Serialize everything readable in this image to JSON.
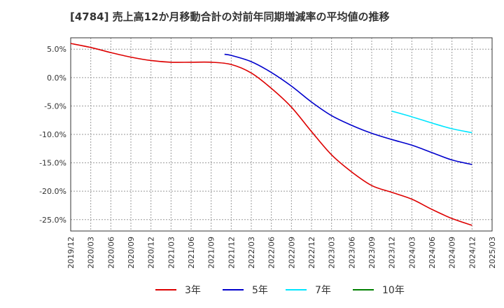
{
  "chart_data": {
    "type": "line",
    "title": "[4784]  売上高12か月移動合計の対前年同期増減率の平均値の推移",
    "xlabel": "",
    "ylabel": "",
    "x_ticks": [
      "2019/12",
      "2020/03",
      "2020/06",
      "2020/09",
      "2020/12",
      "2021/03",
      "2021/06",
      "2021/09",
      "2021/12",
      "2022/03",
      "2022/06",
      "2022/09",
      "2022/12",
      "2023/03",
      "2023/06",
      "2023/09",
      "2023/12",
      "2024/03",
      "2024/06",
      "2024/09",
      "2024/12",
      "2025/03"
    ],
    "y_ticks": [
      "5.0%",
      "0.0%",
      "-5.0%",
      "-10.0%",
      "-15.0%",
      "-20.0%",
      "-25.0%"
    ],
    "y_tick_values": [
      5,
      0,
      -5,
      -10,
      -15,
      -20,
      -25
    ],
    "ylim": [
      -27,
      7
    ],
    "grid": true,
    "legend_position": "bottom",
    "series": [
      {
        "name": "3年",
        "color": "#dd0000",
        "points": [
          [
            "2019/12",
            6.0
          ],
          [
            "2020/03",
            5.3
          ],
          [
            "2020/06",
            4.4
          ],
          [
            "2020/09",
            3.6
          ],
          [
            "2020/12",
            3.0
          ],
          [
            "2021/03",
            2.7
          ],
          [
            "2021/06",
            2.7
          ],
          [
            "2021/09",
            2.7
          ],
          [
            "2021/12",
            2.3
          ],
          [
            "2022/03",
            0.8
          ],
          [
            "2022/06",
            -1.9
          ],
          [
            "2022/09",
            -5.2
          ],
          [
            "2022/12",
            -9.5
          ],
          [
            "2023/03",
            -13.6
          ],
          [
            "2023/06",
            -16.6
          ],
          [
            "2023/09",
            -19.0
          ],
          [
            "2023/12",
            -20.2
          ],
          [
            "2024/03",
            -21.4
          ],
          [
            "2024/06",
            -23.2
          ],
          [
            "2024/09",
            -24.8
          ],
          [
            "2024/12",
            -26.0
          ]
        ]
      },
      {
        "name": "5年",
        "color": "#0000cc",
        "points": [
          [
            "2021/11",
            4.1
          ],
          [
            "2021/12",
            3.9
          ],
          [
            "2022/03",
            2.8
          ],
          [
            "2022/06",
            0.9
          ],
          [
            "2022/09",
            -1.5
          ],
          [
            "2022/12",
            -4.3
          ],
          [
            "2023/03",
            -6.7
          ],
          [
            "2023/06",
            -8.4
          ],
          [
            "2023/09",
            -9.8
          ],
          [
            "2023/12",
            -10.9
          ],
          [
            "2024/03",
            -11.9
          ],
          [
            "2024/06",
            -13.2
          ],
          [
            "2024/09",
            -14.5
          ],
          [
            "2024/12",
            -15.3
          ]
        ]
      },
      {
        "name": "7年",
        "color": "#00e5ff",
        "points": [
          [
            "2023/12",
            -5.9
          ],
          [
            "2024/03",
            -6.9
          ],
          [
            "2024/06",
            -8.0
          ],
          [
            "2024/09",
            -9.0
          ],
          [
            "2024/12",
            -9.7
          ]
        ]
      },
      {
        "name": "10年",
        "color": "#008000",
        "points": []
      }
    ]
  }
}
